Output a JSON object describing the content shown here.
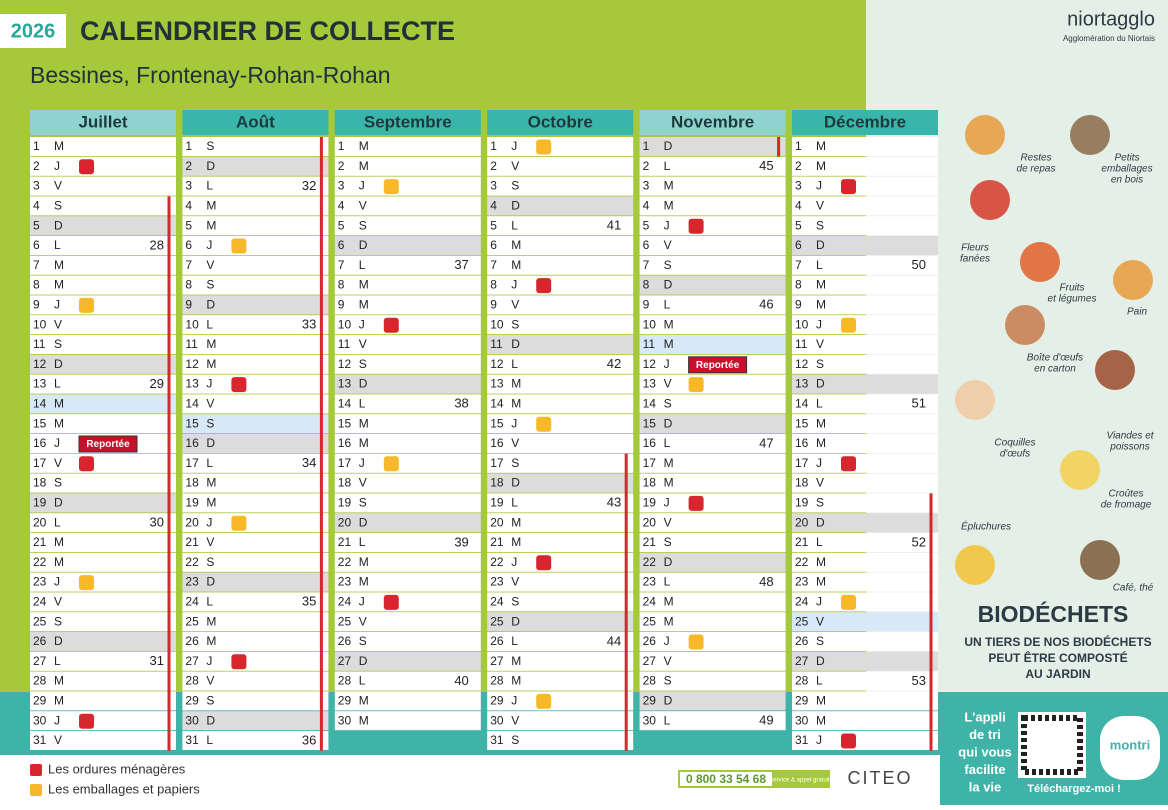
{
  "header": {
    "year": "2026",
    "title": "CALENDRIER DE COLLECTE",
    "subtitle": "Bessines, Frontenay-Rohan-Rohan",
    "brand": "niortagglo",
    "brand_sub": "Agglomération du Niortais"
  },
  "legend": [
    {
      "key": "ordures",
      "label": "Les ordures ménagères",
      "color": "#d7262e"
    },
    {
      "key": "emballages",
      "label": "Les emballages et papiers",
      "color": "#f7b92a"
    }
  ],
  "months": [
    {
      "name": "Juillet",
      "header_color": "#8fd3d0",
      "days": [
        1,
        2,
        3,
        4,
        5,
        6,
        7,
        8,
        9,
        10,
        11,
        12,
        13,
        14,
        15,
        16,
        17,
        18,
        19,
        20,
        21,
        22,
        23,
        24,
        25,
        26,
        27,
        28,
        29,
        30,
        31
      ],
      "letters": [
        "M",
        "J",
        "V",
        "S",
        "D",
        "L",
        "M",
        "M",
        "J",
        "V",
        "S",
        "D",
        "L",
        "M",
        "M",
        "J",
        "V",
        "S",
        "D",
        "L",
        "M",
        "M",
        "J",
        "V",
        "S",
        "D",
        "L",
        "M",
        "M",
        "J",
        "V"
      ],
      "weeks": [
        {
          "day": 6,
          "week": 28
        },
        {
          "day": 13,
          "week": 29
        },
        {
          "day": 20,
          "week": 30
        },
        {
          "day": 27,
          "week": 31
        }
      ],
      "collections": [
        {
          "day": 2,
          "type": "ordures"
        },
        {
          "day": 9,
          "type": "emballages"
        },
        {
          "day": 17,
          "type": "ordures"
        },
        {
          "day": 23,
          "type": "emballages"
        },
        {
          "day": 30,
          "type": "ordures"
        }
      ],
      "holidays": [
        14
      ],
      "notes": [
        {
          "day": 16,
          "text": "Reportée"
        }
      ],
      "school_holidays": [
        4,
        31
      ]
    },
    {
      "name": "Août",
      "header_color": "#3ab5ac",
      "days": [
        1,
        2,
        3,
        4,
        5,
        6,
        7,
        8,
        9,
        10,
        11,
        12,
        13,
        14,
        15,
        16,
        17,
        18,
        19,
        20,
        21,
        22,
        23,
        24,
        25,
        26,
        27,
        28,
        29,
        30,
        31
      ],
      "letters": [
        "S",
        "D",
        "L",
        "M",
        "M",
        "J",
        "V",
        "S",
        "D",
        "L",
        "M",
        "M",
        "J",
        "V",
        "S",
        "D",
        "L",
        "M",
        "M",
        "J",
        "V",
        "S",
        "D",
        "L",
        "M",
        "M",
        "J",
        "V",
        "S",
        "D",
        "L"
      ],
      "weeks": [
        {
          "day": 3,
          "week": 32
        },
        {
          "day": 10,
          "week": 33
        },
        {
          "day": 17,
          "week": 34
        },
        {
          "day": 24,
          "week": 35
        },
        {
          "day": 31,
          "week": 36
        }
      ],
      "collections": [
        {
          "day": 6,
          "type": "emballages"
        },
        {
          "day": 13,
          "type": "ordures"
        },
        {
          "day": 20,
          "type": "emballages"
        },
        {
          "day": 27,
          "type": "ordures"
        }
      ],
      "holidays": [
        15
      ],
      "notes": [],
      "school_holidays": [
        1,
        31
      ]
    },
    {
      "name": "Septembre",
      "header_color": "#3ab5ac",
      "days": [
        1,
        2,
        3,
        4,
        5,
        6,
        7,
        8,
        9,
        10,
        11,
        12,
        13,
        14,
        15,
        16,
        17,
        18,
        19,
        20,
        21,
        22,
        23,
        24,
        25,
        26,
        27,
        28,
        29,
        30
      ],
      "letters": [
        "M",
        "M",
        "J",
        "V",
        "S",
        "D",
        "L",
        "M",
        "M",
        "J",
        "V",
        "S",
        "D",
        "L",
        "M",
        "M",
        "J",
        "V",
        "S",
        "D",
        "L",
        "M",
        "M",
        "J",
        "V",
        "S",
        "D",
        "L",
        "M",
        "M"
      ],
      "weeks": [
        {
          "day": 7,
          "week": 37
        },
        {
          "day": 14,
          "week": 38
        },
        {
          "day": 21,
          "week": 39
        },
        {
          "day": 28,
          "week": 40
        }
      ],
      "collections": [
        {
          "day": 3,
          "type": "emballages"
        },
        {
          "day": 10,
          "type": "ordures"
        },
        {
          "day": 17,
          "type": "emballages"
        },
        {
          "day": 24,
          "type": "ordures"
        }
      ],
      "holidays": [],
      "notes": [],
      "school_holidays": []
    },
    {
      "name": "Octobre",
      "header_color": "#3ab5ac",
      "days": [
        1,
        2,
        3,
        4,
        5,
        6,
        7,
        8,
        9,
        10,
        11,
        12,
        13,
        14,
        15,
        16,
        17,
        18,
        19,
        20,
        21,
        22,
        23,
        24,
        25,
        26,
        27,
        28,
        29,
        30,
        31
      ],
      "letters": [
        "J",
        "V",
        "S",
        "D",
        "L",
        "M",
        "M",
        "J",
        "V",
        "S",
        "D",
        "L",
        "M",
        "M",
        "J",
        "V",
        "S",
        "D",
        "L",
        "M",
        "M",
        "J",
        "V",
        "S",
        "D",
        "L",
        "M",
        "M",
        "J",
        "V",
        "S"
      ],
      "weeks": [
        {
          "day": 5,
          "week": 41
        },
        {
          "day": 12,
          "week": 42
        },
        {
          "day": 19,
          "week": 43
        },
        {
          "day": 26,
          "week": 44
        }
      ],
      "collections": [
        {
          "day": 1,
          "type": "emballages"
        },
        {
          "day": 8,
          "type": "ordures"
        },
        {
          "day": 15,
          "type": "emballages"
        },
        {
          "day": 22,
          "type": "ordures"
        },
        {
          "day": 29,
          "type": "emballages"
        }
      ],
      "holidays": [],
      "notes": [],
      "school_holidays": [
        17,
        31
      ]
    },
    {
      "name": "Novembre",
      "header_color": "#8fd3d0",
      "days": [
        1,
        2,
        3,
        4,
        5,
        6,
        7,
        8,
        9,
        10,
        11,
        12,
        13,
        14,
        15,
        16,
        17,
        18,
        19,
        20,
        21,
        22,
        23,
        24,
        25,
        26,
        27,
        28,
        29,
        30
      ],
      "letters": [
        "D",
        "L",
        "M",
        "M",
        "J",
        "V",
        "S",
        "D",
        "L",
        "M",
        "M",
        "J",
        "V",
        "S",
        "D",
        "L",
        "M",
        "M",
        "J",
        "V",
        "S",
        "D",
        "L",
        "M",
        "M",
        "J",
        "V",
        "S",
        "D",
        "L"
      ],
      "weeks": [
        {
          "day": 2,
          "week": 45
        },
        {
          "day": 9,
          "week": 46
        },
        {
          "day": 16,
          "week": 47
        },
        {
          "day": 23,
          "week": 48
        },
        {
          "day": 30,
          "week": 49
        }
      ],
      "collections": [
        {
          "day": 5,
          "type": "ordures"
        },
        {
          "day": 13,
          "type": "emballages"
        },
        {
          "day": 19,
          "type": "ordures"
        },
        {
          "day": 26,
          "type": "emballages"
        }
      ],
      "holidays": [
        11
      ],
      "notes": [
        {
          "day": 12,
          "text": "Reportée"
        }
      ],
      "school_holidays": [
        1,
        1
      ]
    },
    {
      "name": "Décembre",
      "header_color": "#3ab5ac",
      "days": [
        1,
        2,
        3,
        4,
        5,
        6,
        7,
        8,
        9,
        10,
        11,
        12,
        13,
        14,
        15,
        16,
        17,
        18,
        19,
        20,
        21,
        22,
        23,
        24,
        25,
        26,
        27,
        28,
        29,
        30,
        31
      ],
      "letters": [
        "M",
        "M",
        "J",
        "V",
        "S",
        "D",
        "L",
        "M",
        "M",
        "J",
        "V",
        "S",
        "D",
        "L",
        "M",
        "M",
        "J",
        "V",
        "S",
        "D",
        "L",
        "M",
        "M",
        "J",
        "V",
        "S",
        "D",
        "L",
        "M",
        "M",
        "J"
      ],
      "weeks": [
        {
          "day": 7,
          "week": 50
        },
        {
          "day": 14,
          "week": 51
        },
        {
          "day": 21,
          "week": 52
        },
        {
          "day": 28,
          "week": 53
        }
      ],
      "collections": [
        {
          "day": 3,
          "type": "ordures"
        },
        {
          "day": 10,
          "type": "emballages"
        },
        {
          "day": 17,
          "type": "ordures"
        },
        {
          "day": 24,
          "type": "emballages"
        },
        {
          "day": 31,
          "type": "ordures"
        }
      ],
      "holidays": [
        25
      ],
      "notes": [],
      "school_holidays": [
        19,
        31
      ]
    }
  ],
  "footer": {
    "phone": "0 800 33 54 68",
    "phone_note": "Service & appel gratuits",
    "partner": "CITEO"
  },
  "biodechets": {
    "items": [
      [
        "Restes",
        "de repas"
      ],
      [
        "Petits",
        "emballages",
        "en bois"
      ],
      [
        "Fleurs",
        "fanées"
      ],
      [
        "Fruits",
        "et légumes"
      ],
      [
        "Pain"
      ],
      [
        "Boîte d'œufs",
        "en carton"
      ],
      [
        "Coquilles",
        "d'œufs"
      ],
      [
        "Viandes et",
        "poissons"
      ],
      [
        "Croûtes",
        "de fromage"
      ],
      [
        "Épluchures"
      ],
      [
        "Café, thé"
      ]
    ],
    "title": "BIODÉCHETS",
    "subtitle": [
      "UN TIERS DE NOS BIODÉCHETS",
      "PEUT ÊTRE COMPOSTÉ",
      "AU JARDIN"
    ]
  },
  "app": {
    "text": [
      "L'appli",
      "de tri",
      "qui vous",
      "facilite",
      "la vie"
    ],
    "cta": "Téléchargez-moi !",
    "name": "montri"
  }
}
